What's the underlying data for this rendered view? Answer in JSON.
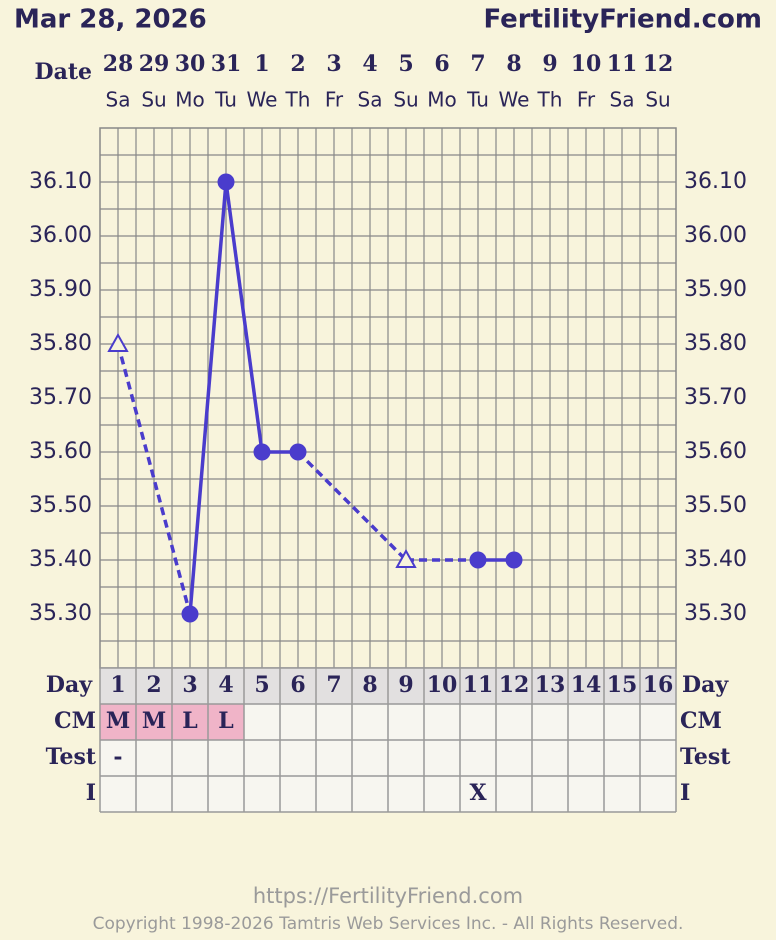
{
  "header": {
    "date": "Mar 28, 2026",
    "site": "FertilityFriend.com"
  },
  "chart_data": {
    "type": "line",
    "date_label": "Date",
    "categories": [
      "28",
      "29",
      "30",
      "31",
      "1",
      "2",
      "3",
      "4",
      "5",
      "6",
      "7",
      "8",
      "9",
      "10",
      "11",
      "12"
    ],
    "weekdays": [
      "Sa",
      "Su",
      "Mo",
      "Tu",
      "We",
      "Th",
      "Fr",
      "Sa",
      "Su",
      "Mo",
      "Tu",
      "We",
      "Th",
      "Fr",
      "Sa",
      "Su"
    ],
    "ylim": [
      35.2,
      36.2
    ],
    "yticks": [
      {
        "value": 35.3,
        "label": "35.30"
      },
      {
        "value": 35.4,
        "label": "35.40"
      },
      {
        "value": 35.5,
        "label": "35.50"
      },
      {
        "value": 35.6,
        "label": "35.60"
      },
      {
        "value": 35.7,
        "label": "35.70"
      },
      {
        "value": 35.8,
        "label": "35.80"
      },
      {
        "value": 35.9,
        "label": "35.90"
      },
      {
        "value": 36.0,
        "label": "36.00"
      },
      {
        "value": 36.1,
        "label": "36.10"
      }
    ],
    "grid": true,
    "series": [
      {
        "color": "#4a3ccc",
        "values": [
          35.8,
          null,
          35.3,
          36.1,
          35.6,
          35.6,
          null,
          null,
          35.4,
          null,
          35.4,
          35.4,
          null,
          null,
          null,
          null
        ],
        "markers": [
          "triangle",
          null,
          "circle",
          "circle",
          "circle",
          "circle",
          null,
          null,
          "triangle",
          null,
          "circle",
          "circle",
          null,
          null,
          null,
          null
        ]
      }
    ]
  },
  "table": {
    "day_label": "Day",
    "days": [
      1,
      2,
      3,
      4,
      5,
      6,
      7,
      8,
      9,
      10,
      11,
      12,
      13,
      14,
      15,
      16
    ],
    "rows": [
      {
        "label": "CM",
        "cells": [
          "M",
          "M",
          "L",
          "L",
          null,
          null,
          null,
          null,
          null,
          null,
          null,
          null,
          null,
          null,
          null,
          null
        ],
        "color": "#f0b4c8"
      },
      {
        "label": "Test",
        "cells": [
          "-",
          null,
          null,
          null,
          null,
          null,
          null,
          null,
          null,
          null,
          null,
          null,
          null,
          null,
          null,
          null
        ]
      },
      {
        "label": "I",
        "cells": [
          null,
          null,
          null,
          null,
          null,
          null,
          null,
          null,
          null,
          null,
          "X",
          null,
          null,
          null,
          null,
          null
        ]
      }
    ]
  },
  "footer": {
    "url": "https://FertilityFriend.com",
    "copyright": "Copyright 1998-2026 Tamtris Web Services Inc. - All Rights Reserved."
  }
}
